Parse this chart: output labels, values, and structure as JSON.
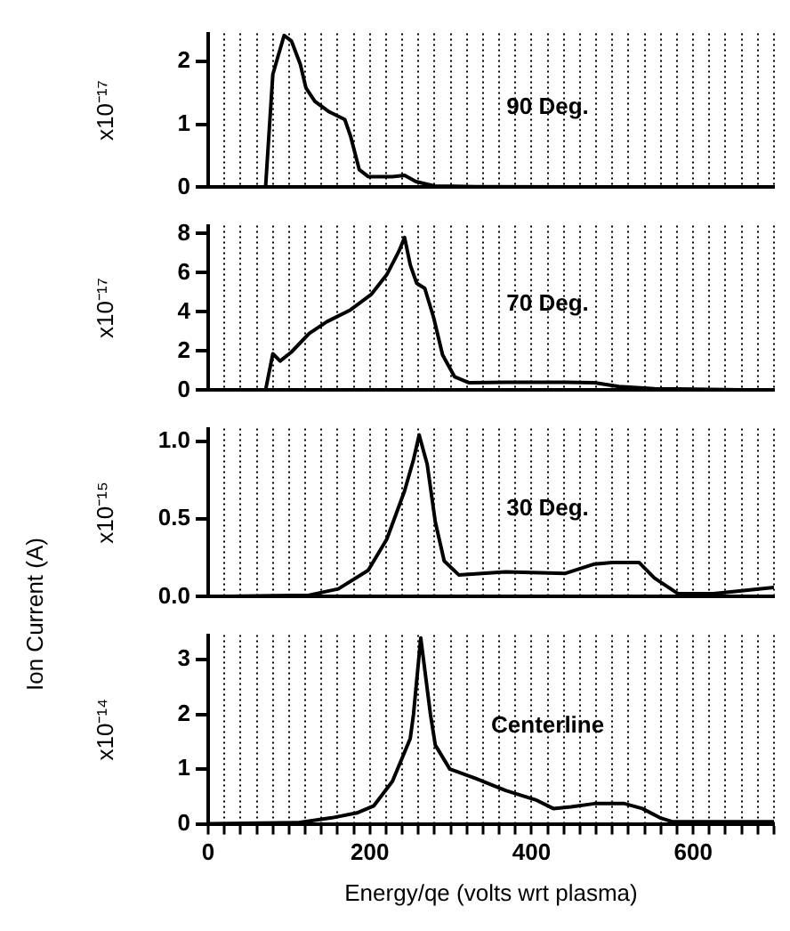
{
  "chart_data": [
    {
      "type": "line",
      "ylabel": "x10⁻¹⁷",
      "annotations": [
        "90 Deg."
      ],
      "color": "#000000",
      "grid": "x",
      "tick_labels": "y",
      "xlim": [
        0,
        700
      ],
      "ylim": [
        0,
        2.45
      ],
      "yticks": [
        0,
        1,
        2
      ],
      "xticks": [
        0,
        {
          "value": 20,
          "label": null
        },
        {
          "value": 40,
          "label": null
        },
        {
          "value": 60,
          "label": null
        },
        {
          "value": 80,
          "label": null
        },
        {
          "value": 100,
          "label": null
        },
        {
          "value": 120,
          "label": null
        },
        {
          "value": 140,
          "label": null
        },
        {
          "value": 160,
          "label": null
        },
        {
          "value": 180,
          "label": null
        },
        200,
        {
          "value": 220,
          "label": null
        },
        {
          "value": 240,
          "label": null
        },
        {
          "value": 260,
          "label": null
        },
        {
          "value": 280,
          "label": null
        },
        {
          "value": 300,
          "label": null
        },
        {
          "value": 320,
          "label": null
        },
        {
          "value": 340,
          "label": null
        },
        {
          "value": 360,
          "label": null
        },
        {
          "value": 380,
          "label": null
        },
        400,
        {
          "value": 420,
          "label": null
        },
        {
          "value": 440,
          "label": null
        },
        {
          "value": 460,
          "label": null
        },
        {
          "value": 480,
          "label": null
        },
        {
          "value": 500,
          "label": null
        },
        {
          "value": 520,
          "label": null
        },
        {
          "value": 540,
          "label": null
        },
        {
          "value": 560,
          "label": null
        },
        {
          "value": 580,
          "label": null
        },
        600,
        {
          "value": 620,
          "label": null
        },
        {
          "value": 640,
          "label": null
        },
        {
          "value": 660,
          "label": null
        },
        {
          "value": 680,
          "label": null
        },
        {
          "value": 700,
          "label": null
        }
      ],
      "x": [
        0,
        71,
        80,
        89,
        94,
        103,
        114,
        121,
        132,
        150,
        169,
        176,
        187,
        198,
        228,
        243,
        257,
        280,
        331,
        700
      ],
      "values": [
        0,
        0,
        1.8,
        2.2,
        2.42,
        2.33,
        1.96,
        1.58,
        1.37,
        1.2,
        1.08,
        0.82,
        0.28,
        0.17,
        0.17,
        0.19,
        0.09,
        0.02,
        0.01,
        0
      ]
    },
    {
      "type": "line",
      "ylabel": "x10⁻¹⁷",
      "annotations": [
        "70 Deg."
      ],
      "color": "#000000",
      "grid": "x",
      "tick_labels": "y",
      "xlim": [
        0,
        700
      ],
      "ylim": [
        0,
        8.4
      ],
      "yticks": [
        0,
        2,
        4,
        6,
        8
      ],
      "xticks": [
        0,
        {
          "value": 20,
          "label": null
        },
        {
          "value": 40,
          "label": null
        },
        {
          "value": 60,
          "label": null
        },
        {
          "value": 80,
          "label": null
        },
        {
          "value": 100,
          "label": null
        },
        {
          "value": 120,
          "label": null
        },
        {
          "value": 140,
          "label": null
        },
        {
          "value": 160,
          "label": null
        },
        {
          "value": 180,
          "label": null
        },
        200,
        {
          "value": 220,
          "label": null
        },
        {
          "value": 240,
          "label": null
        },
        {
          "value": 260,
          "label": null
        },
        {
          "value": 280,
          "label": null
        },
        {
          "value": 300,
          "label": null
        },
        {
          "value": 320,
          "label": null
        },
        {
          "value": 340,
          "label": null
        },
        {
          "value": 360,
          "label": null
        },
        {
          "value": 380,
          "label": null
        },
        400,
        {
          "value": 420,
          "label": null
        },
        {
          "value": 440,
          "label": null
        },
        {
          "value": 460,
          "label": null
        },
        {
          "value": 480,
          "label": null
        },
        {
          "value": 500,
          "label": null
        },
        {
          "value": 520,
          "label": null
        },
        {
          "value": 540,
          "label": null
        },
        {
          "value": 560,
          "label": null
        },
        {
          "value": 580,
          "label": null
        },
        600,
        {
          "value": 620,
          "label": null
        },
        {
          "value": 640,
          "label": null
        },
        {
          "value": 660,
          "label": null
        },
        {
          "value": 680,
          "label": null
        },
        {
          "value": 700,
          "label": null
        }
      ],
      "x": [
        0,
        71,
        80,
        89,
        103,
        125,
        147,
        176,
        202,
        221,
        236,
        243,
        250,
        258,
        268,
        279,
        290,
        305,
        323,
        368,
        442,
        478,
        508,
        552,
        700
      ],
      "values": [
        0,
        0,
        1.86,
        1.49,
        1.95,
        2.9,
        3.5,
        4.1,
        4.9,
        5.9,
        7.1,
        7.8,
        6.4,
        5.46,
        5.2,
        3.7,
        1.8,
        0.68,
        0.38,
        0.4,
        0.4,
        0.38,
        0.19,
        0.08,
        0
      ]
    },
    {
      "type": "line",
      "ylabel": "x10⁻¹⁵",
      "annotations": [
        "30 Deg.",
        "Ion Current (A)"
      ],
      "color": "#000000",
      "grid": "x",
      "tick_labels": "y",
      "xlim": [
        0,
        700
      ],
      "ylim": [
        0,
        1.08
      ],
      "yticks": [
        {
          "value": 0,
          "label": "0.0"
        },
        {
          "value": 0.5,
          "label": "0.5"
        },
        {
          "value": 1,
          "label": "1.0"
        }
      ],
      "xticks": [
        0,
        {
          "value": 20,
          "label": null
        },
        {
          "value": 40,
          "label": null
        },
        {
          "value": 60,
          "label": null
        },
        {
          "value": 80,
          "label": null
        },
        {
          "value": 100,
          "label": null
        },
        {
          "value": 120,
          "label": null
        },
        {
          "value": 140,
          "label": null
        },
        {
          "value": 160,
          "label": null
        },
        {
          "value": 180,
          "label": null
        },
        200,
        {
          "value": 220,
          "label": null
        },
        {
          "value": 240,
          "label": null
        },
        {
          "value": 260,
          "label": null
        },
        {
          "value": 280,
          "label": null
        },
        {
          "value": 300,
          "label": null
        },
        {
          "value": 320,
          "label": null
        },
        {
          "value": 340,
          "label": null
        },
        {
          "value": 360,
          "label": null
        },
        {
          "value": 380,
          "label": null
        },
        400,
        {
          "value": 420,
          "label": null
        },
        {
          "value": 440,
          "label": null
        },
        {
          "value": 460,
          "label": null
        },
        {
          "value": 480,
          "label": null
        },
        {
          "value": 500,
          "label": null
        },
        {
          "value": 520,
          "label": null
        },
        {
          "value": 540,
          "label": null
        },
        {
          "value": 560,
          "label": null
        },
        {
          "value": 580,
          "label": null
        },
        600,
        {
          "value": 620,
          "label": null
        },
        {
          "value": 640,
          "label": null
        },
        {
          "value": 660,
          "label": null
        },
        {
          "value": 680,
          "label": null
        },
        {
          "value": 700,
          "label": null
        }
      ],
      "x": [
        0,
        125,
        161,
        198,
        221,
        243,
        254,
        261,
        271,
        281,
        292,
        310,
        368,
        442,
        478,
        500,
        533,
        552,
        581,
        625,
        700
      ],
      "values": [
        0,
        0.01,
        0.05,
        0.17,
        0.37,
        0.68,
        0.88,
        1.04,
        0.85,
        0.48,
        0.23,
        0.14,
        0.16,
        0.15,
        0.21,
        0.22,
        0.22,
        0.12,
        0.02,
        0.02,
        0.06
      ]
    },
    {
      "type": "line",
      "ylabel": "x10⁻¹⁴",
      "xlabel": "Energy/qe (volts wrt plasma)",
      "annotations": [
        "Centerline"
      ],
      "color": "#000000",
      "grid": "x",
      "xlim": [
        0,
        700
      ],
      "ylim": [
        0,
        3.45
      ],
      "yticks": [
        0,
        1,
        2,
        3
      ],
      "xticks": [
        0,
        {
          "value": 20,
          "label": null
        },
        {
          "value": 40,
          "label": null
        },
        {
          "value": 60,
          "label": null
        },
        {
          "value": 80,
          "label": null
        },
        {
          "value": 100,
          "label": null
        },
        {
          "value": 120,
          "label": null
        },
        {
          "value": 140,
          "label": null
        },
        {
          "value": 160,
          "label": null
        },
        {
          "value": 180,
          "label": null
        },
        200,
        {
          "value": 220,
          "label": null
        },
        {
          "value": 240,
          "label": null
        },
        {
          "value": 260,
          "label": null
        },
        {
          "value": 280,
          "label": null
        },
        {
          "value": 300,
          "label": null
        },
        {
          "value": 320,
          "label": null
        },
        {
          "value": 340,
          "label": null
        },
        {
          "value": 360,
          "label": null
        },
        {
          "value": 380,
          "label": null
        },
        400,
        {
          "value": 420,
          "label": null
        },
        {
          "value": 440,
          "label": null
        },
        {
          "value": 460,
          "label": null
        },
        {
          "value": 480,
          "label": null
        },
        {
          "value": 500,
          "label": null
        },
        {
          "value": 520,
          "label": null
        },
        {
          "value": 540,
          "label": null
        },
        {
          "value": 560,
          "label": null
        },
        {
          "value": 580,
          "label": null
        },
        600,
        {
          "value": 620,
          "label": null
        },
        {
          "value": 640,
          "label": null
        },
        {
          "value": 660,
          "label": null
        },
        {
          "value": 680,
          "label": null
        },
        {
          "value": 700,
          "label": null
        }
      ],
      "x": [
        0,
        110,
        153,
        184,
        205,
        228,
        250,
        254,
        263,
        275,
        281,
        299,
        331,
        368,
        405,
        427,
        449,
        478,
        515,
        537,
        559,
        574,
        700
      ],
      "values": [
        0,
        0.02,
        0.11,
        0.2,
        0.33,
        0.78,
        1.56,
        2.0,
        3.4,
        2.0,
        1.44,
        1.0,
        0.83,
        0.61,
        0.44,
        0.28,
        0.31,
        0.37,
        0.37,
        0.28,
        0.11,
        0.04,
        0.04
      ]
    }
  ]
}
